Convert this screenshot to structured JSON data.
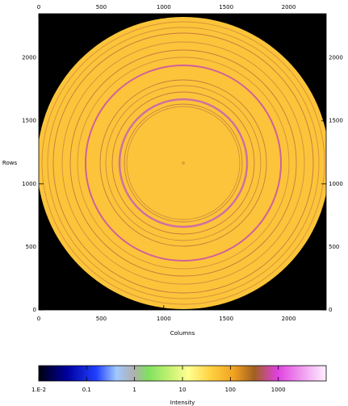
{
  "chart_data": {
    "type": "image",
    "x_label": "Columns",
    "y_label": "Rows",
    "xlim": [
      0,
      2300
    ],
    "xticks": [
      0,
      500,
      1000,
      1500,
      2000
    ],
    "ylim": [
      0,
      2350
    ],
    "yticks": [
      0,
      500,
      1000,
      1500,
      2000
    ],
    "colorbar": {
      "label": "Intensity",
      "scale": "log",
      "lim": [
        0.01,
        10000
      ],
      "ticks": [
        {
          "value": 0.01,
          "label": "1.E-2"
        },
        0.1,
        1,
        10,
        100,
        1000
      ]
    }
  }
}
